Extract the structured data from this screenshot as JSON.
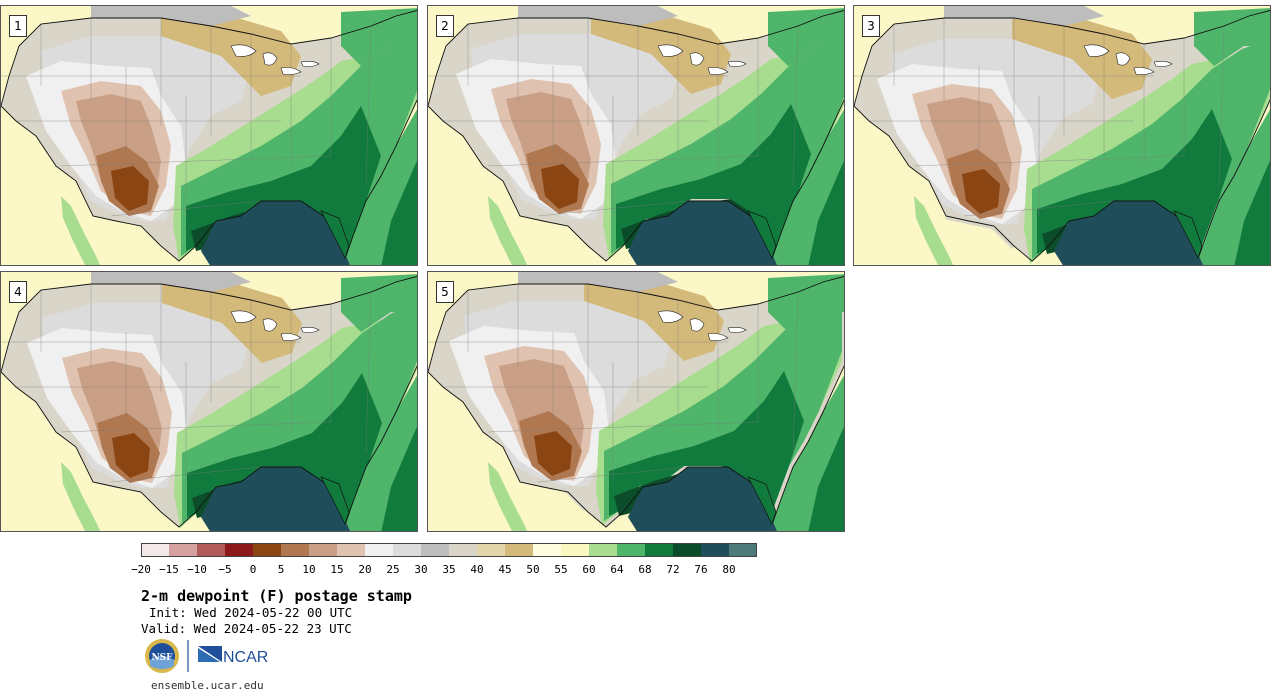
{
  "panels": [
    {
      "label": "1",
      "variant": 0
    },
    {
      "label": "2",
      "variant": 1
    },
    {
      "label": "3",
      "variant": 2
    },
    {
      "label": "4",
      "variant": 3
    },
    {
      "label": "5",
      "variant": 4
    }
  ],
  "colorbar": {
    "colors": [
      "#f4e9e9",
      "#d4a0a0",
      "#b05a5a",
      "#8c1a1a",
      "#8b4513",
      "#b07850",
      "#c9a085",
      "#dfc3b0",
      "#f0f0f0",
      "#dcdcdc",
      "#bdbdbd",
      "#d9d6c9",
      "#e4d6ac",
      "#d3b97a",
      "#fffde0",
      "#fbf7c0",
      "#a8dc8f",
      "#4fb56a",
      "#117a3d",
      "#0b4d2a",
      "#1f4e5a",
      "#4f7a7a"
    ],
    "ticks": [
      "−20",
      "−15",
      "−10",
      "−5",
      "0",
      "5",
      "10",
      "15",
      "20",
      "25",
      "30",
      "35",
      "40",
      "45",
      "50",
      "55",
      "60",
      "64",
      "68",
      "72",
      "76",
      "80"
    ]
  },
  "title": "2-m dewpoint (F) postage stamp",
  "init_text": "Init: Wed 2024-05-22 00 UTC",
  "valid_text": "Valid: Wed 2024-05-22 23 UTC",
  "logos": {
    "nsf": "NSF",
    "ncar": "NCAR"
  },
  "website": "ensemble.ucar.edu"
}
